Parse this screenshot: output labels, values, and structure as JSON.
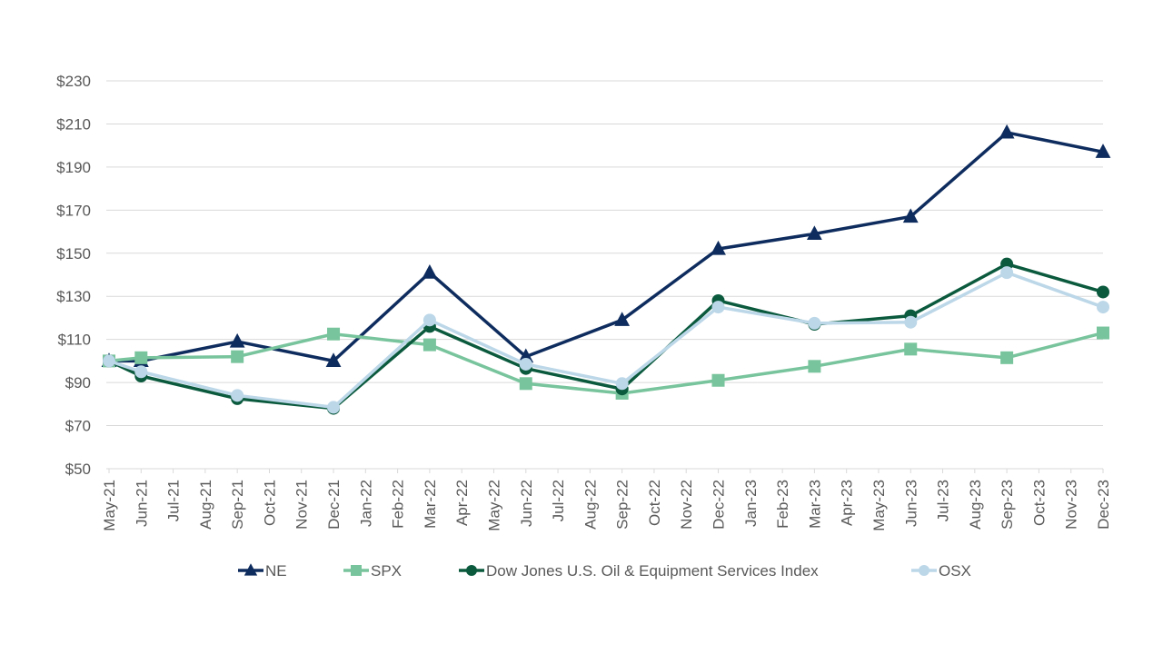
{
  "chart_data": {
    "type": "line",
    "title": "",
    "xlabel": "",
    "ylabel": "",
    "ylim": [
      50,
      230
    ],
    "y_ticks": [
      {
        "value": 230,
        "label": "$230"
      },
      {
        "value": 210,
        "label": "$210"
      },
      {
        "value": 190,
        "label": "$190"
      },
      {
        "value": 170,
        "label": "$170"
      },
      {
        "value": 150,
        "label": "$150"
      },
      {
        "value": 130,
        "label": "$130"
      },
      {
        "value": 110,
        "label": "$110"
      },
      {
        "value": 90,
        "label": "$90"
      },
      {
        "value": 70,
        "label": "$70"
      },
      {
        "value": 50,
        "label": "$50"
      }
    ],
    "categories": [
      "May-21",
      "Jun-21",
      "Jul-21",
      "Aug-21",
      "Sep-21",
      "Oct-21",
      "Nov-21",
      "Dec-21",
      "Jan-22",
      "Feb-22",
      "Mar-22",
      "Apr-22",
      "May-22",
      "Jun-22",
      "Jul-22",
      "Aug-22",
      "Sep-22",
      "Oct-22",
      "Nov-22",
      "Dec-22",
      "Jan-23",
      "Feb-23",
      "Mar-23",
      "Apr-23",
      "May-23",
      "Jun-23",
      "Jul-23",
      "Aug-23",
      "Sep-23",
      "Oct-23",
      "Nov-23",
      "Dec-23"
    ],
    "grid": true,
    "legend_position": "bottom",
    "series": [
      {
        "name": "NE",
        "color": "#0e2c5e",
        "marker": "triangle",
        "points": [
          {
            "x": "May-21",
            "y": 100
          },
          {
            "x": "Jun-21",
            "y": 100
          },
          {
            "x": "Sep-21",
            "y": 109
          },
          {
            "x": "Dec-21",
            "y": 100
          },
          {
            "x": "Mar-22",
            "y": 141
          },
          {
            "x": "Jun-22",
            "y": 102
          },
          {
            "x": "Sep-22",
            "y": 119
          },
          {
            "x": "Dec-22",
            "y": 152
          },
          {
            "x": "Mar-23",
            "y": 159
          },
          {
            "x": "Jun-23",
            "y": 167
          },
          {
            "x": "Sep-23",
            "y": 206
          },
          {
            "x": "Dec-23",
            "y": 197
          }
        ]
      },
      {
        "name": "SPX",
        "color": "#78c49c",
        "marker": "square",
        "points": [
          {
            "x": "May-21",
            "y": 100
          },
          {
            "x": "Jun-21",
            "y": 101.5
          },
          {
            "x": "Sep-21",
            "y": 102
          },
          {
            "x": "Dec-21",
            "y": 112.5
          },
          {
            "x": "Mar-22",
            "y": 107.5
          },
          {
            "x": "Jun-22",
            "y": 89.5
          },
          {
            "x": "Sep-22",
            "y": 85
          },
          {
            "x": "Dec-22",
            "y": 91
          },
          {
            "x": "Mar-23",
            "y": 97.5
          },
          {
            "x": "Jun-23",
            "y": 105.5
          },
          {
            "x": "Sep-23",
            "y": 101.5
          },
          {
            "x": "Dec-23",
            "y": 113
          }
        ]
      },
      {
        "name": "Dow Jones U.S. Oil & Equipment Services Index",
        "color": "#0b5a3e",
        "marker": "circle",
        "points": [
          {
            "x": "May-21",
            "y": 100
          },
          {
            "x": "Jun-21",
            "y": 93
          },
          {
            "x": "Sep-21",
            "y": 82.5
          },
          {
            "x": "Dec-21",
            "y": 78
          },
          {
            "x": "Mar-22",
            "y": 116
          },
          {
            "x": "Jun-22",
            "y": 96.5
          },
          {
            "x": "Sep-22",
            "y": 87
          },
          {
            "x": "Dec-22",
            "y": 128
          },
          {
            "x": "Mar-23",
            "y": 117
          },
          {
            "x": "Jun-23",
            "y": 121
          },
          {
            "x": "Sep-23",
            "y": 145
          },
          {
            "x": "Dec-23",
            "y": 132
          }
        ]
      },
      {
        "name": "OSX",
        "color": "#bcd7e8",
        "marker": "circle",
        "points": [
          {
            "x": "May-21",
            "y": 100
          },
          {
            "x": "Jun-21",
            "y": 95
          },
          {
            "x": "Sep-21",
            "y": 84
          },
          {
            "x": "Dec-21",
            "y": 78.5
          },
          {
            "x": "Mar-22",
            "y": 119
          },
          {
            "x": "Jun-22",
            "y": 98.5
          },
          {
            "x": "Sep-22",
            "y": 89.5
          },
          {
            "x": "Dec-22",
            "y": 125
          },
          {
            "x": "Mar-23",
            "y": 117.5
          },
          {
            "x": "Jun-23",
            "y": 118
          },
          {
            "x": "Sep-23",
            "y": 141
          },
          {
            "x": "Dec-23",
            "y": 125
          }
        ]
      }
    ]
  }
}
